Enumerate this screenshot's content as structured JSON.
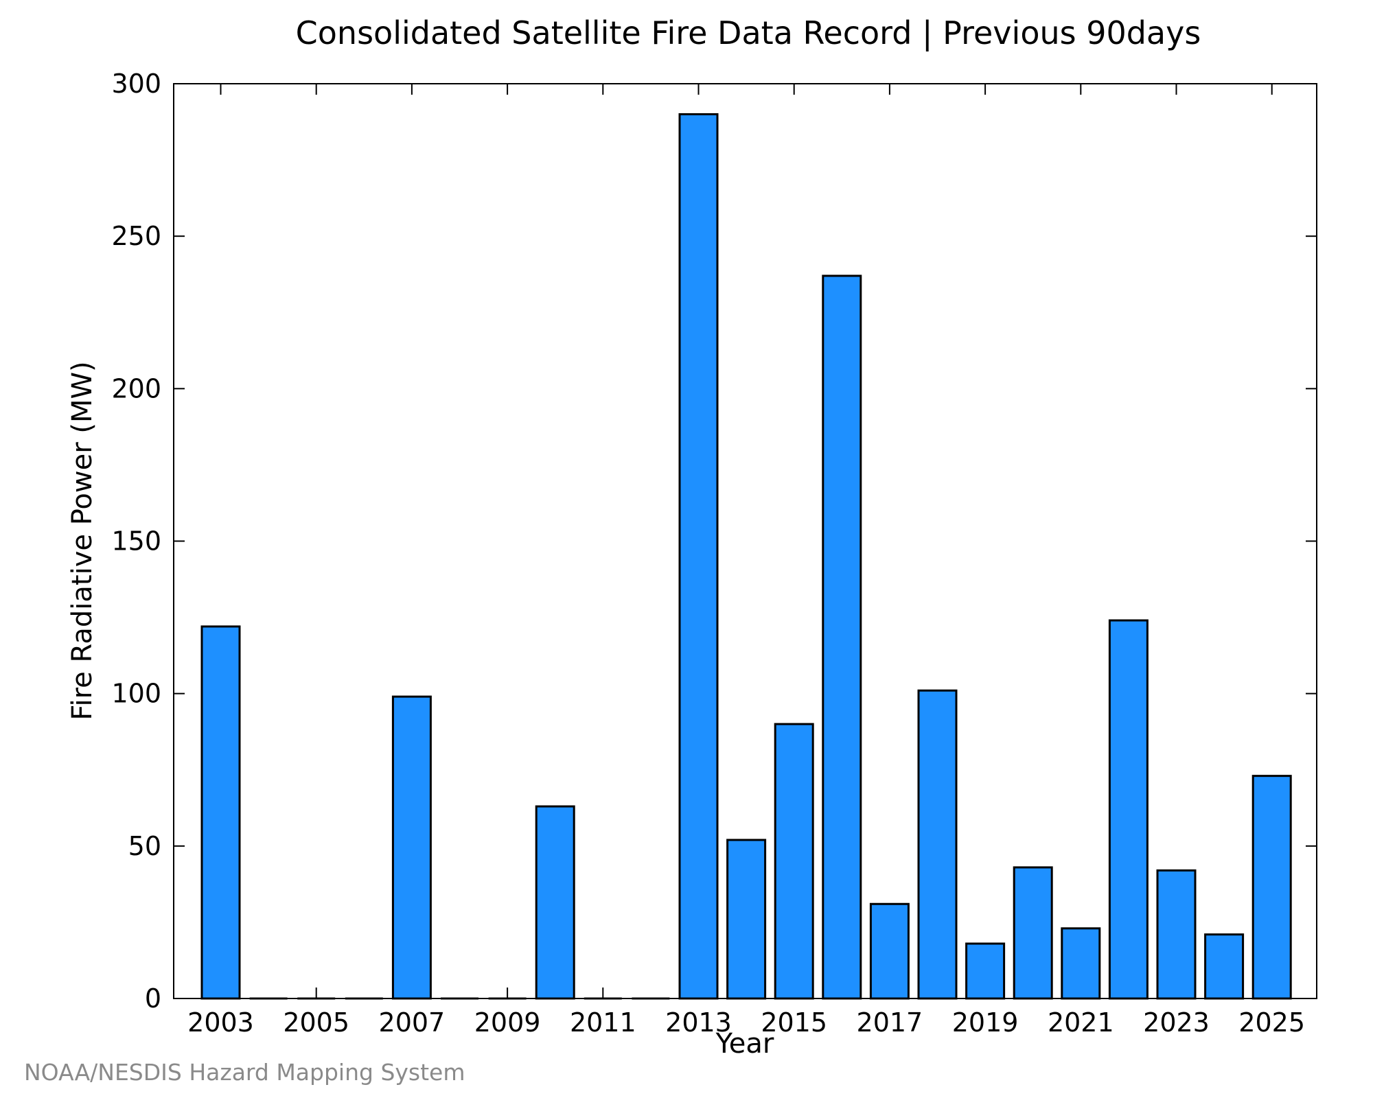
{
  "chart_data": {
    "type": "bar",
    "title": "Consolidated Satellite Fire Data Record | Previous 90days",
    "xlabel": "Year",
    "ylabel": "Fire Radiative Power (MW)",
    "ylim": [
      0,
      300
    ],
    "yticks": [
      0,
      50,
      100,
      150,
      200,
      250,
      300
    ],
    "xticks": [
      2003,
      2005,
      2007,
      2009,
      2011,
      2013,
      2015,
      2017,
      2019,
      2021,
      2023,
      2025
    ],
    "categories": [
      2003,
      2004,
      2005,
      2006,
      2007,
      2008,
      2009,
      2010,
      2011,
      2012,
      2013,
      2014,
      2015,
      2016,
      2017,
      2018,
      2019,
      2020,
      2021,
      2022,
      2023,
      2024,
      2025
    ],
    "values": [
      122,
      0,
      0,
      0,
      99,
      0,
      0,
      63,
      0,
      0,
      290,
      52,
      90,
      237,
      31,
      101,
      18,
      43,
      23,
      124,
      42,
      21,
      73
    ],
    "grid": false,
    "bar_color": "#1e90ff",
    "edge_color": "#000000"
  },
  "credit": "NOAA/NESDIS Hazard Mapping System"
}
